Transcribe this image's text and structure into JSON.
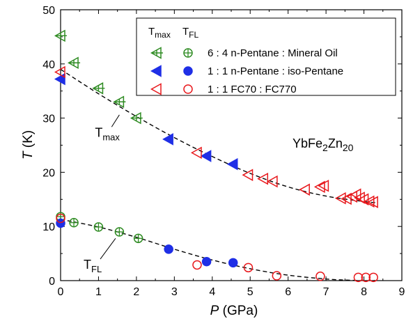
{
  "chart_data": {
    "type": "scatter",
    "xlabel_symbol": "P",
    "xlabel_unit": " (GPa)",
    "ylabel_symbol": "T",
    "ylabel_unit": " (K)",
    "xlim": [
      0,
      9
    ],
    "ylim": [
      0,
      50
    ],
    "xticks": [
      0,
      1,
      2,
      3,
      4,
      5,
      6,
      7,
      8,
      9
    ],
    "yticks": [
      0,
      10,
      20,
      30,
      40,
      50
    ],
    "compound": {
      "a": "YbFe",
      "sub1": "2",
      "b": "Zn",
      "sub2": "20"
    },
    "legend": {
      "position": "top-right",
      "header_tmax_base": "T",
      "header_tmax_sub": "max",
      "header_tfl_base": "T",
      "header_tfl_sub": "FL",
      "entries": [
        {
          "label": "6 : 4 n-Pentane : Mineral Oil",
          "color": "#2e8b22",
          "tmax_marker": "triangle-left-cross",
          "tfl_marker": "circle-cross"
        },
        {
          "label": "1 : 1 n-Pentane : iso-Pentane",
          "color": "#1f2fe6",
          "tmax_marker": "triangle-left-filled",
          "tfl_marker": "circle-filled"
        },
        {
          "label": "1 : 1 FC70 : FC770",
          "color": "#e8181c",
          "tmax_marker": "triangle-left-open",
          "tfl_marker": "circle-open"
        }
      ]
    },
    "annotations": [
      {
        "base": "T",
        "sub": "max",
        "x": 1.2,
        "y": 27.6,
        "pointer_to": [
          1.55,
          30.6
        ]
      },
      {
        "base": "T",
        "sub": "FL",
        "x": 0.9,
        "y": 3.2,
        "pointer_to": [
          1.45,
          7.8
        ]
      }
    ],
    "fits": [
      {
        "name": "Tmax fit",
        "style": "dashed",
        "x": [
          0,
          1,
          2,
          3,
          4,
          5,
          6,
          7,
          8,
          8.3
        ],
        "y": [
          39.0,
          34.5,
          30.3,
          26.4,
          22.9,
          19.8,
          17.3,
          15.6,
          14.6,
          14.4
        ]
      },
      {
        "name": "TFL fit",
        "style": "dashed",
        "x": [
          0,
          1,
          2,
          3,
          4,
          5,
          6,
          7,
          7.5,
          8.0,
          8.3
        ],
        "y": [
          11.3,
          9.9,
          8.0,
          5.8,
          3.8,
          2.2,
          1.0,
          0.3,
          0.1,
          0.0,
          0.0
        ]
      }
    ],
    "series": [
      {
        "medium": "6 : 4 n-Pentane : Mineral Oil",
        "color": "#2e8b22",
        "tmax_marker": "triangle-left-cross",
        "tfl_marker": "circle-cross",
        "tmax": [
          [
            0.0,
            45.2
          ],
          [
            0.35,
            40.2
          ],
          [
            1.0,
            35.5
          ],
          [
            1.55,
            33.0
          ],
          [
            2.0,
            30.0
          ]
        ],
        "tfl": [
          [
            0.0,
            11.8
          ],
          [
            0.35,
            10.7
          ],
          [
            1.0,
            9.9
          ],
          [
            1.55,
            9.0
          ],
          [
            2.05,
            7.8
          ]
        ]
      },
      {
        "medium": "1 : 1 n-Pentane : iso-Pentane",
        "color": "#1f2fe6",
        "tmax_marker": "triangle-left-filled",
        "tfl_marker": "circle-filled",
        "tmax": [
          [
            0.0,
            37.2
          ],
          [
            2.85,
            26.1
          ],
          [
            3.85,
            23.0
          ],
          [
            4.55,
            21.5
          ]
        ],
        "tfl": [
          [
            0.0,
            10.6
          ],
          [
            2.85,
            5.8
          ],
          [
            3.85,
            3.5
          ],
          [
            4.55,
            3.3
          ]
        ]
      },
      {
        "medium": "1 : 1 FC70 : FC770",
        "color": "#e8181c",
        "tmax_marker": "triangle-left-open",
        "tfl_marker": "circle-open",
        "tmax": [
          [
            0.0,
            38.5
          ],
          [
            3.6,
            23.6
          ],
          [
            4.95,
            19.5
          ],
          [
            5.35,
            18.8
          ],
          [
            5.6,
            18.3
          ],
          [
            6.45,
            16.8
          ],
          [
            6.85,
            17.3
          ],
          [
            6.95,
            17.5
          ],
          [
            7.4,
            15.2
          ],
          [
            7.55,
            15.1
          ],
          [
            7.7,
            15.5
          ],
          [
            7.8,
            15.9
          ],
          [
            7.9,
            15.3
          ],
          [
            8.0,
            15.0
          ],
          [
            8.15,
            14.6
          ],
          [
            8.25,
            14.5
          ]
        ],
        "tfl": [
          [
            0.0,
            11.5
          ],
          [
            3.6,
            2.9
          ],
          [
            4.95,
            2.4
          ],
          [
            5.7,
            0.9
          ],
          [
            6.85,
            0.8
          ],
          [
            7.85,
            0.6
          ],
          [
            8.05,
            0.6
          ],
          [
            8.25,
            0.6
          ]
        ]
      }
    ]
  }
}
